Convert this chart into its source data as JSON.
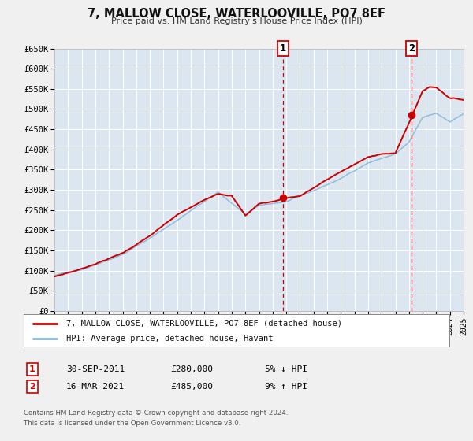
{
  "title": "7, MALLOW CLOSE, WATERLOOVILLE, PO7 8EF",
  "subtitle": "Price paid vs. HM Land Registry's House Price Index (HPI)",
  "fig_bg_color": "#f0f0f0",
  "plot_bg_color": "#dce6f0",
  "grid_color": "#ffffff",
  "xmin": 1995,
  "xmax": 2025,
  "ymin": 0,
  "ymax": 650000,
  "yticks": [
    0,
    50000,
    100000,
    150000,
    200000,
    250000,
    300000,
    350000,
    400000,
    450000,
    500000,
    550000,
    600000,
    650000
  ],
  "ytick_labels": [
    "£0",
    "£50K",
    "£100K",
    "£150K",
    "£200K",
    "£250K",
    "£300K",
    "£350K",
    "£400K",
    "£450K",
    "£500K",
    "£550K",
    "£600K",
    "£650K"
  ],
  "sale1_x": 2011.75,
  "sale1_y": 280000,
  "sale1_label": "1",
  "sale1_date": "30-SEP-2011",
  "sale1_price": "£280,000",
  "sale1_pct": "5% ↓ HPI",
  "sale2_x": 2021.21,
  "sale2_y": 485000,
  "sale2_label": "2",
  "sale2_date": "16-MAR-2021",
  "sale2_price": "£485,000",
  "sale2_pct": "9% ↑ HPI",
  "red_line_color": "#cc0000",
  "blue_line_color": "#88b8d8",
  "marker_color": "#cc0000",
  "vline_color": "#cc0000",
  "legend_label_red": "7, MALLOW CLOSE, WATERLOOVILLE, PO7 8EF (detached house)",
  "legend_label_blue": "HPI: Average price, detached house, Havant",
  "footnote1": "Contains HM Land Registry data © Crown copyright and database right 2024.",
  "footnote2": "This data is licensed under the Open Government Licence v3.0."
}
